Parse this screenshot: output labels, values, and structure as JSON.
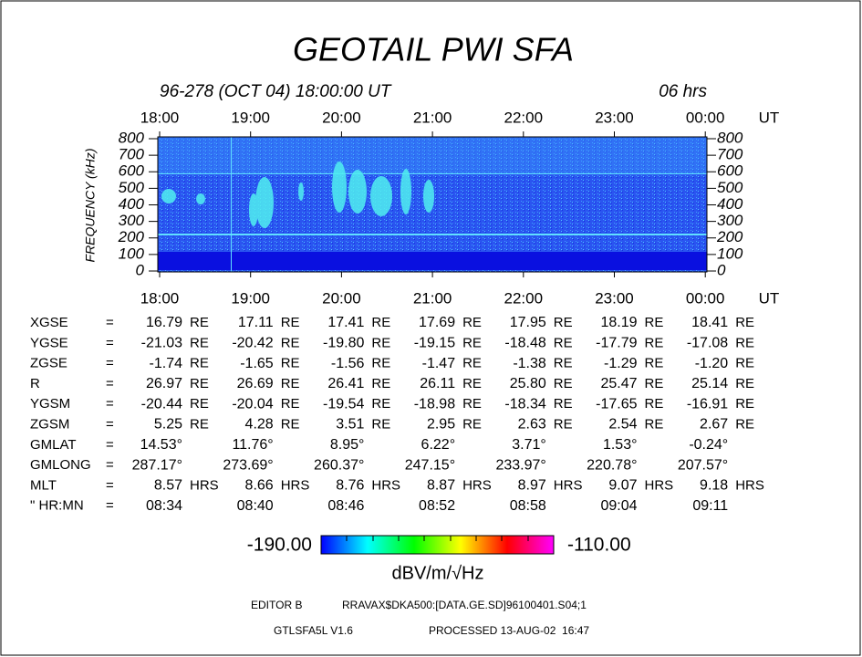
{
  "chart_data": {
    "type": "spectrogram",
    "title": "GEOTAIL PWI SFA",
    "subtitle": "96-278 (OCT 04) 18:00:00 UT",
    "duration": "06 hrs",
    "x_unit": "UT",
    "categories": [
      "18:00",
      "19:00",
      "20:00",
      "21:00",
      "22:00",
      "23:00",
      "00:00"
    ],
    "y_label": "FREQUENCY (kHz)",
    "ylim": [
      0,
      800
    ],
    "yticks": [
      0,
      100,
      200,
      300,
      400,
      500,
      600,
      700,
      800
    ],
    "colorbar": {
      "range": [
        {
          "value": -190,
          "label": "-190.00"
        },
        {
          "value": -110,
          "label": "-110.00"
        }
      ],
      "unit": "dBV/m/√Hz",
      "colors": [
        "#0000ff",
        "#00ffff",
        "#00ff00",
        "#ffff00",
        "#ff0000",
        "#ff00ff"
      ]
    }
  },
  "ephemeris": [
    {
      "label": "XGSE",
      "unit": "RE",
      "values": [
        "16.79",
        "17.11",
        "17.41",
        "17.69",
        "17.95",
        "18.19",
        "18.41"
      ]
    },
    {
      "label": "YGSE",
      "unit": "RE",
      "values": [
        "-21.03",
        "-20.42",
        "-19.80",
        "-19.15",
        "-18.48",
        "-17.79",
        "-17.08"
      ]
    },
    {
      "label": "ZGSE",
      "unit": "RE",
      "values": [
        "-1.74",
        "-1.65",
        "-1.56",
        "-1.47",
        "-1.38",
        "-1.29",
        "-1.20"
      ]
    },
    {
      "label": "R",
      "unit": "RE",
      "values": [
        "26.97",
        "26.69",
        "26.41",
        "26.11",
        "25.80",
        "25.47",
        "25.14"
      ]
    },
    {
      "label": "YGSM",
      "unit": "RE",
      "values": [
        "-20.44",
        "-20.04",
        "-19.54",
        "-18.98",
        "-18.34",
        "-17.65",
        "-16.91"
      ]
    },
    {
      "label": "ZGSM",
      "unit": "RE",
      "values": [
        "5.25",
        "4.28",
        "3.51",
        "2.95",
        "2.63",
        "2.54",
        "2.67"
      ]
    },
    {
      "label": "GMLAT",
      "values": [
        "14.53°",
        "11.76°",
        "8.95°",
        "6.22°",
        "3.71°",
        "1.53°",
        "-0.24°"
      ]
    },
    {
      "label": "GMLONG",
      "values": [
        "287.17°",
        "273.69°",
        "260.37°",
        "247.15°",
        "233.97°",
        "220.78°",
        "207.57°"
      ]
    },
    {
      "label": "MLT",
      "unit": "HRS",
      "values": [
        "8.57",
        "8.66",
        "8.76",
        "8.87",
        "8.97",
        "9.07",
        "9.18"
      ]
    },
    {
      "label": "\" HR:MN",
      "values": [
        "08:34",
        "08:40",
        "08:46",
        "08:52",
        "08:58",
        "09:04",
        "09:11"
      ]
    }
  ],
  "equals": "=",
  "footer": {
    "editor": "EDITOR B",
    "file": "RRAVAX$DKA500:[DATA.GE.SD]96100401.S04;1",
    "program": "GTLSFA5L V1.6",
    "processed": "PROCESSED 13-AUG-02  16:47"
  }
}
